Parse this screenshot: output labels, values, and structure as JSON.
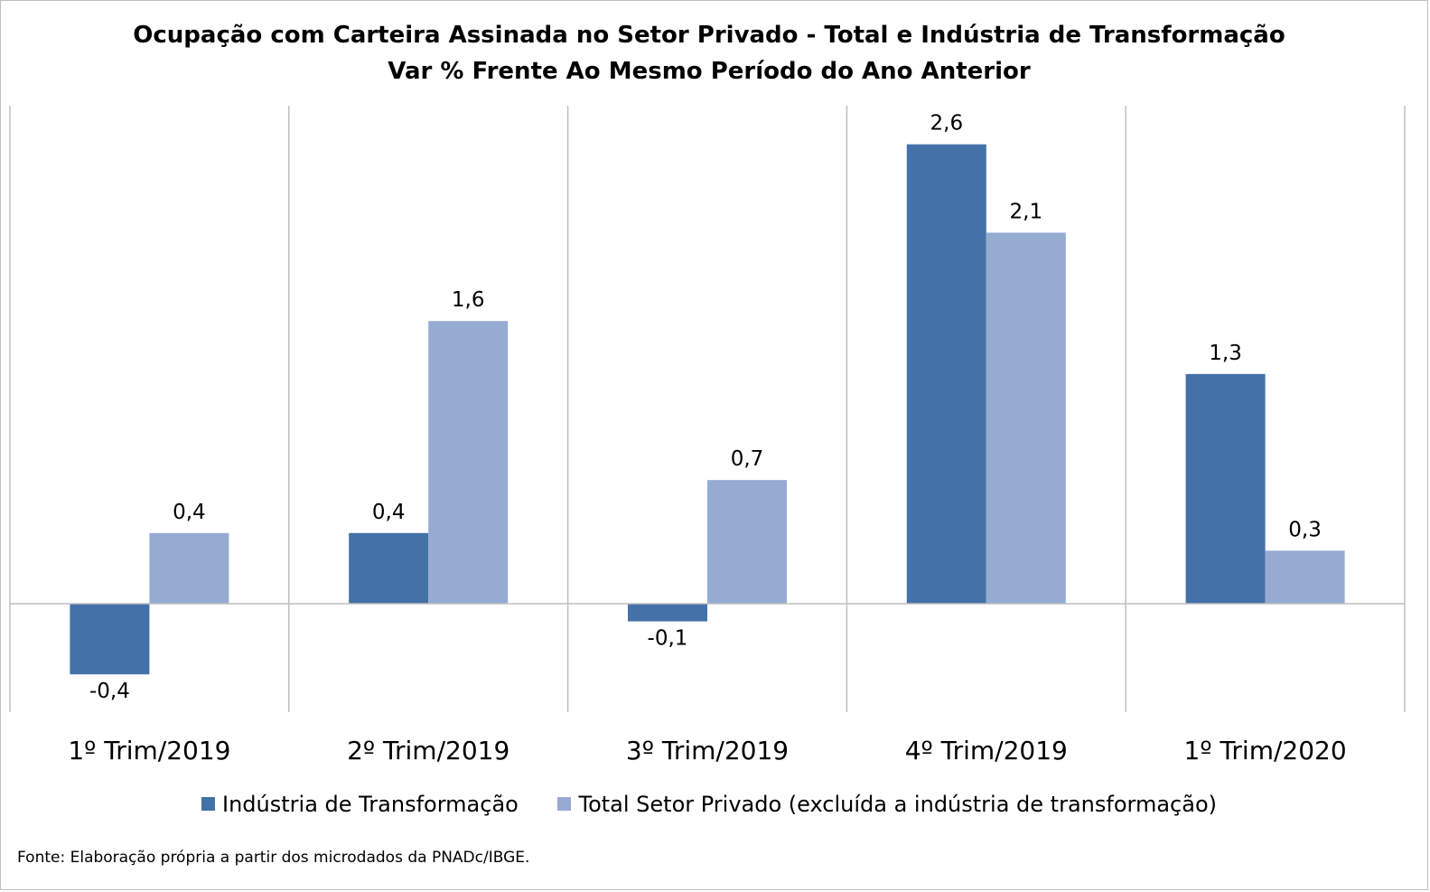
{
  "chart_data": {
    "type": "bar",
    "title": "Ocupação com Carteira Assinada no Setor Privado - Total e Indústria de Transformação",
    "subtitle": "Var % Frente Ao Mesmo Período do Ano Anterior",
    "categories": [
      "1º Trim/2019",
      "2º Trim/2019",
      "3º Trim/2019",
      "4º Trim/2019",
      "1º Trim/2020"
    ],
    "series": [
      {
        "name": "Indústria de Transformação",
        "color": "#4472a8",
        "values": [
          -0.4,
          0.4,
          -0.1,
          2.6,
          1.3
        ],
        "labels": [
          "-0,4",
          "0,4",
          "-0,1",
          "2,6",
          "1,3"
        ]
      },
      {
        "name": "Total Setor Privado (excluída a indústria de transformação)",
        "color": "#95abd2",
        "values": [
          0.4,
          1.6,
          0.7,
          2.1,
          0.3
        ],
        "labels": [
          "0,4",
          "1,6",
          "0,7",
          "2,1",
          "0,3"
        ]
      }
    ],
    "ylim": [
      -0.6,
      2.8
    ],
    "grid": false,
    "legend_position": "bottom",
    "source": "Fonte: Elaboração própria a partir dos microdados da PNADc/IBGE."
  }
}
